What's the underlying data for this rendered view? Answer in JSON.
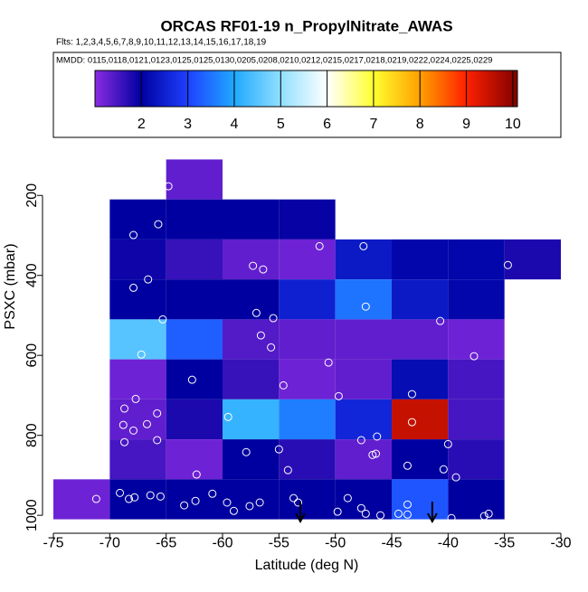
{
  "chart_data": {
    "type": "heatmap",
    "title": "ORCAS RF01-19 n_PropylNitrate_AWAS",
    "subtitle": "Flts: 1,2,3,4,5,6,7,8,9,10,11,12,13,14,15,16,17,18,19",
    "legend_text": "MMDD: 0115,0118,0121,0123,0125,0125,0130,0205,0208,0210,0212,0215,0217,0218,0219,0222,0224,0225,0229",
    "xlabel": "Latitude (deg N)",
    "ylabel": "PSXC (mbar)",
    "xlim": [
      -75,
      -30
    ],
    "xticks": [
      -75,
      -70,
      -65,
      -60,
      -55,
      -50,
      -45,
      -40,
      -35,
      -30
    ],
    "ylim": [
      1020,
      100
    ],
    "yticks": [
      200,
      400,
      600,
      800,
      1000
    ],
    "xbins": [
      -75,
      -70,
      -65,
      -60,
      -55,
      -50,
      -45,
      -40,
      -35,
      -30
    ],
    "ybins": [
      110,
      210,
      310,
      410,
      510,
      610,
      710,
      810,
      910,
      1010
    ],
    "z": [
      [
        null,
        null,
        1.3,
        null,
        null,
        null,
        null,
        null,
        null
      ],
      [
        null,
        2.0,
        2.0,
        2.0,
        1.95,
        null,
        null,
        null,
        null
      ],
      [
        null,
        1.9,
        1.6,
        1.3,
        1.2,
        2.4,
        2.1,
        2.1,
        1.8
      ],
      [
        null,
        2.0,
        2.0,
        2.0,
        2.5,
        3.5,
        2.4,
        2.1,
        null
      ],
      [
        null,
        4.5,
        3.3,
        1.4,
        1.3,
        1.3,
        1.3,
        1.2,
        null
      ],
      [
        null,
        1.2,
        2.0,
        1.6,
        1.2,
        1.3,
        2.2,
        1.5,
        null
      ],
      [
        null,
        1.3,
        1.8,
        4.2,
        3.6,
        2.6,
        9.5,
        1.5,
        null
      ],
      [
        null,
        1.5,
        1.2,
        2.0,
        1.7,
        1.3,
        2.0,
        1.7,
        null
      ],
      [
        1.2,
        2.0,
        2.0,
        2.0,
        2.0,
        2.0,
        3.2,
        2.0,
        null
      ]
    ],
    "points": {
      "x": [
        -64.8,
        -65.7,
        -67.9,
        -66.6,
        -57.3,
        -56.4,
        -51.4,
        -47.5,
        -34.7,
        -67.9,
        -47.3,
        -65.3,
        -57.0,
        -55.5,
        -40.7,
        -67.2,
        -56.6,
        -55.7,
        -50.6,
        -54.6,
        -37.7,
        -62.7,
        -49.7,
        -43.2,
        -67.7,
        -68.7,
        -65.8,
        -59.5,
        -68.8,
        -66.7,
        -67.9,
        -68.7,
        -65.8,
        -43.2,
        -40.0,
        -46.3,
        -47.7,
        -46.7,
        -46.4,
        -55.0,
        -57.9,
        -54.2,
        -62.3,
        -43.6,
        -40.4,
        -39.3,
        -71.2,
        -69.1,
        -68.3,
        -67.8,
        -66.4,
        -65.5,
        -63.4,
        -62.4,
        -60.9,
        -59.6,
        -59.0,
        -57.6,
        -56.7,
        -53.7,
        -53.3,
        -48.9,
        -47.7,
        -49.8,
        -47.3,
        -46.0,
        -44.4,
        -43.6,
        -43.6,
        -39.7,
        -36.8,
        -36.4
      ],
      "y": [
        177,
        272,
        299,
        410,
        376,
        385,
        327,
        327,
        374,
        431,
        478,
        510,
        494,
        507,
        514,
        598,
        550,
        580,
        618,
        675,
        602,
        661,
        702,
        697,
        709,
        733,
        745,
        754,
        774,
        772,
        788,
        817,
        812,
        767,
        822,
        803,
        812,
        849,
        846,
        835,
        842,
        887,
        898,
        876,
        885,
        905,
        959,
        944,
        959,
        955,
        950,
        953,
        975,
        964,
        946,
        968,
        989,
        977,
        968,
        957,
        968,
        957,
        982,
        991,
        996,
        1000,
        996,
        973,
        998,
        1007,
        1002,
        996
      ]
    },
    "arrows_x": [
      -53.1,
      -41.4
    ],
    "colorbar": {
      "lim": [
        1,
        10.1
      ],
      "ticks": [
        2,
        3,
        4,
        5,
        6,
        7,
        8,
        9,
        10
      ],
      "stops": [
        {
          "value": 1,
          "color": "#8a2be2"
        },
        {
          "value": 2,
          "color": "#0000a0"
        },
        {
          "value": 3,
          "color": "#1e40ff"
        },
        {
          "value": 4,
          "color": "#20a8ff"
        },
        {
          "value": 5,
          "color": "#90e0ff"
        },
        {
          "value": 6,
          "color": "#ffffff"
        },
        {
          "value": 7,
          "color": "#ffff30"
        },
        {
          "value": 8,
          "color": "#ffa000"
        },
        {
          "value": 9,
          "color": "#ff2000"
        },
        {
          "value": 10.1,
          "color": "#800000"
        }
      ]
    }
  }
}
